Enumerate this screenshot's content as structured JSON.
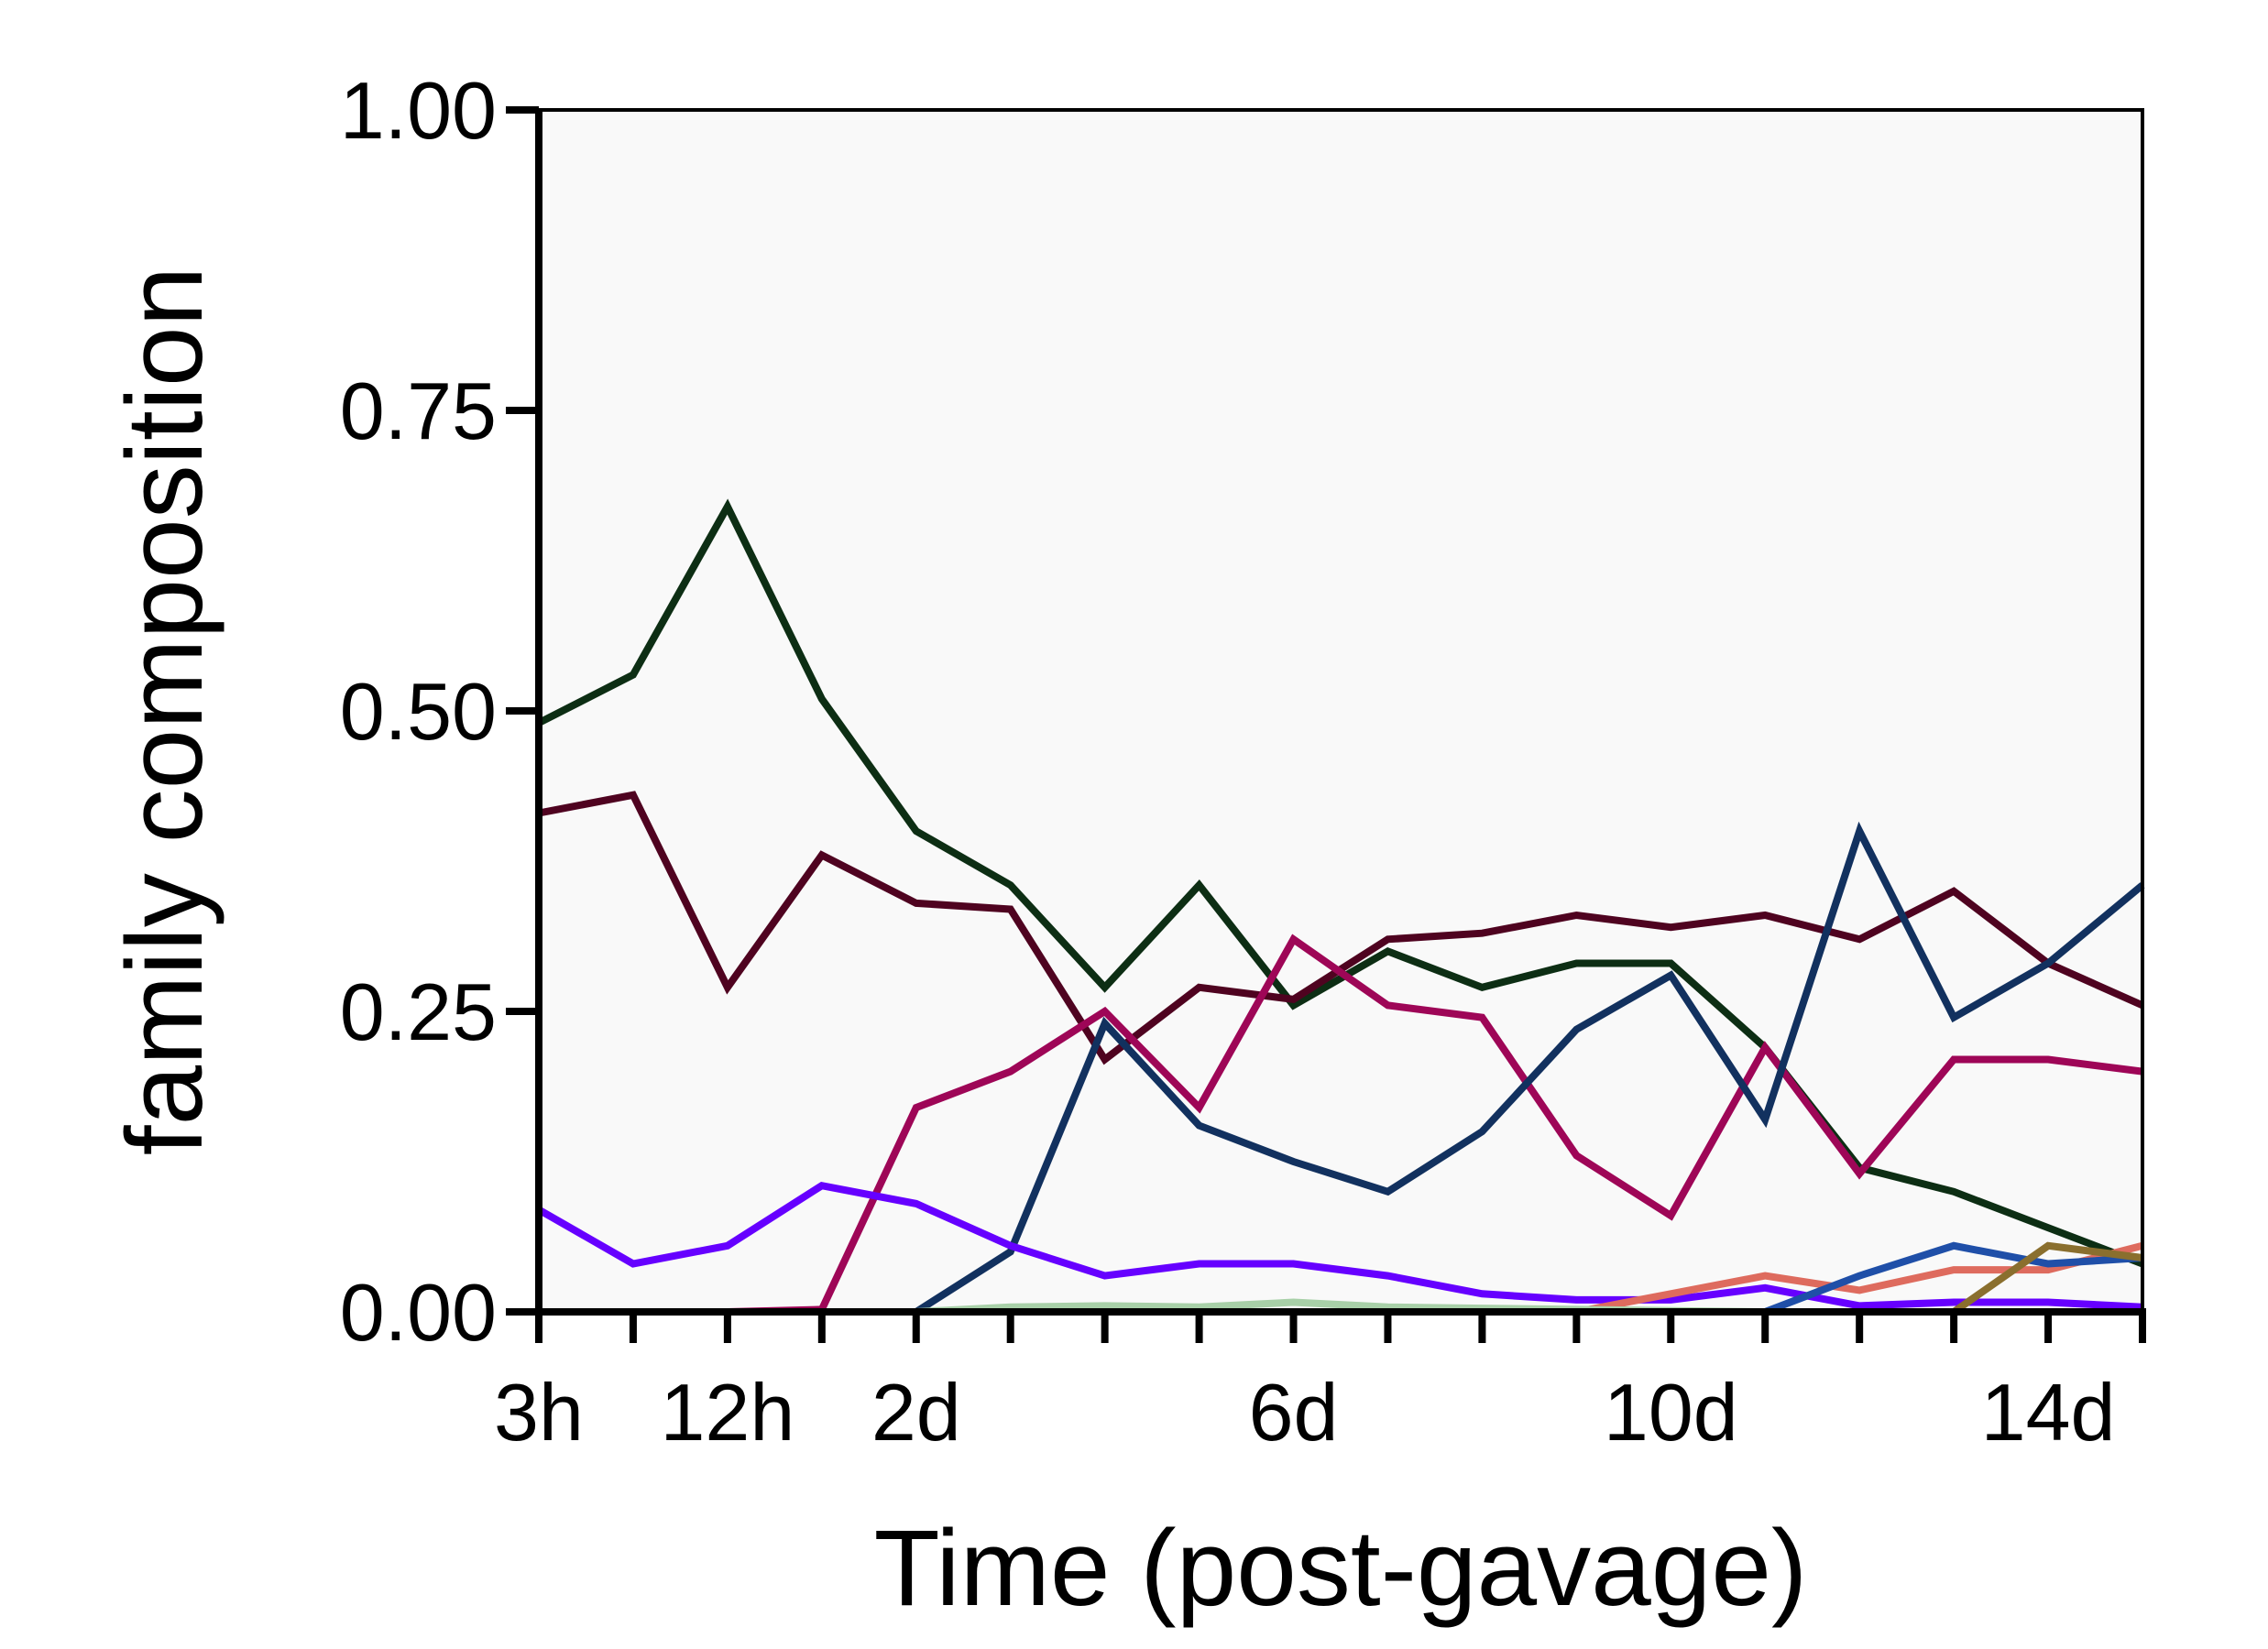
{
  "chart_data": {
    "type": "line",
    "xlabel": "Time (post-gavage)",
    "ylabel": "family composition",
    "ylim": [
      0,
      1
    ],
    "xlim": [
      0,
      17
    ],
    "yticks": [
      0,
      0.25,
      0.5,
      0.75,
      1.0
    ],
    "ytick_labels": [
      "0.00",
      "0.25",
      "0.50",
      "0.75",
      "1.00"
    ],
    "xticks": [
      0,
      1,
      2,
      3,
      4,
      5,
      6,
      7,
      8,
      9,
      10,
      11,
      12,
      13,
      14,
      15,
      16,
      17
    ],
    "xtick_labels": [
      {
        "pos": 0,
        "label": "3h"
      },
      {
        "pos": 2,
        "label": "12h"
      },
      {
        "pos": 4,
        "label": "2d"
      },
      {
        "pos": 8,
        "label": "6d"
      },
      {
        "pos": 12,
        "label": "10d"
      },
      {
        "pos": 16,
        "label": "14d"
      }
    ],
    "grid": false,
    "plot_background": "#f9f9f9",
    "x": [
      0,
      1,
      2,
      3,
      4,
      5,
      6,
      7,
      8,
      9,
      10,
      11,
      12,
      13,
      14,
      15,
      16,
      17
    ],
    "series": [
      {
        "color": "#0d2e14",
        "values": [
          0.49,
          0.53,
          0.67,
          0.51,
          0.4,
          0.355,
          0.27,
          0.355,
          0.255,
          0.3,
          0.27,
          0.29,
          0.29,
          0.22,
          0.12,
          0.1,
          0.07,
          0.04
        ]
      },
      {
        "color": "#4f0320",
        "values": [
          0.415,
          0.43,
          0.27,
          0.38,
          0.34,
          0.335,
          0.21,
          0.27,
          0.26,
          0.31,
          0.315,
          0.33,
          0.32,
          0.33,
          0.31,
          0.35,
          0.29,
          0.255
        ]
      },
      {
        "color": "#9e0657",
        "values": [
          0,
          0,
          0,
          0.002,
          0.17,
          0.2,
          0.25,
          0.17,
          0.31,
          0.255,
          0.245,
          0.13,
          0.08,
          0.22,
          0.115,
          0.21,
          0.21,
          0.2
        ]
      },
      {
        "color": "#12315f",
        "values": [
          0,
          0,
          0,
          0,
          0,
          0.05,
          0.24,
          0.155,
          0.125,
          0.1,
          0.15,
          0.235,
          0.28,
          0.16,
          0.4,
          0.245,
          0.29,
          0.355
        ]
      },
      {
        "color": "#6600ff",
        "values": [
          0.085,
          0.04,
          0.055,
          0.105,
          0.09,
          0.055,
          0.03,
          0.04,
          0.04,
          0.03,
          0.015,
          0.01,
          0.01,
          0.02,
          0.005,
          0.008,
          0.008,
          0.004
        ]
      },
      {
        "color": "#de6b5e",
        "values": [
          0,
          0,
          0,
          0,
          0,
          0,
          0,
          0,
          0,
          0,
          0,
          0,
          0.015,
          0.03,
          0.018,
          0.035,
          0.035,
          0.055
        ]
      },
      {
        "color": "#1f4fa8",
        "values": [
          0,
          0,
          0,
          0,
          0,
          0,
          0,
          0,
          0,
          0,
          0,
          0,
          0,
          0,
          0.03,
          0.055,
          0.04,
          0.045
        ]
      },
      {
        "color": "#8a6f2e",
        "values": [
          0,
          0,
          0,
          0,
          0,
          0,
          0,
          0,
          0,
          0,
          0,
          0,
          0,
          0,
          0,
          0,
          0.055,
          0.045
        ]
      },
      {
        "color": "#a8d0a8",
        "values": [
          0,
          0,
          0,
          0,
          0,
          0.004,
          0.005,
          0.004,
          0.008,
          0.004,
          0.003,
          0.002,
          0.001,
          0,
          0,
          0,
          0,
          0
        ]
      }
    ]
  }
}
